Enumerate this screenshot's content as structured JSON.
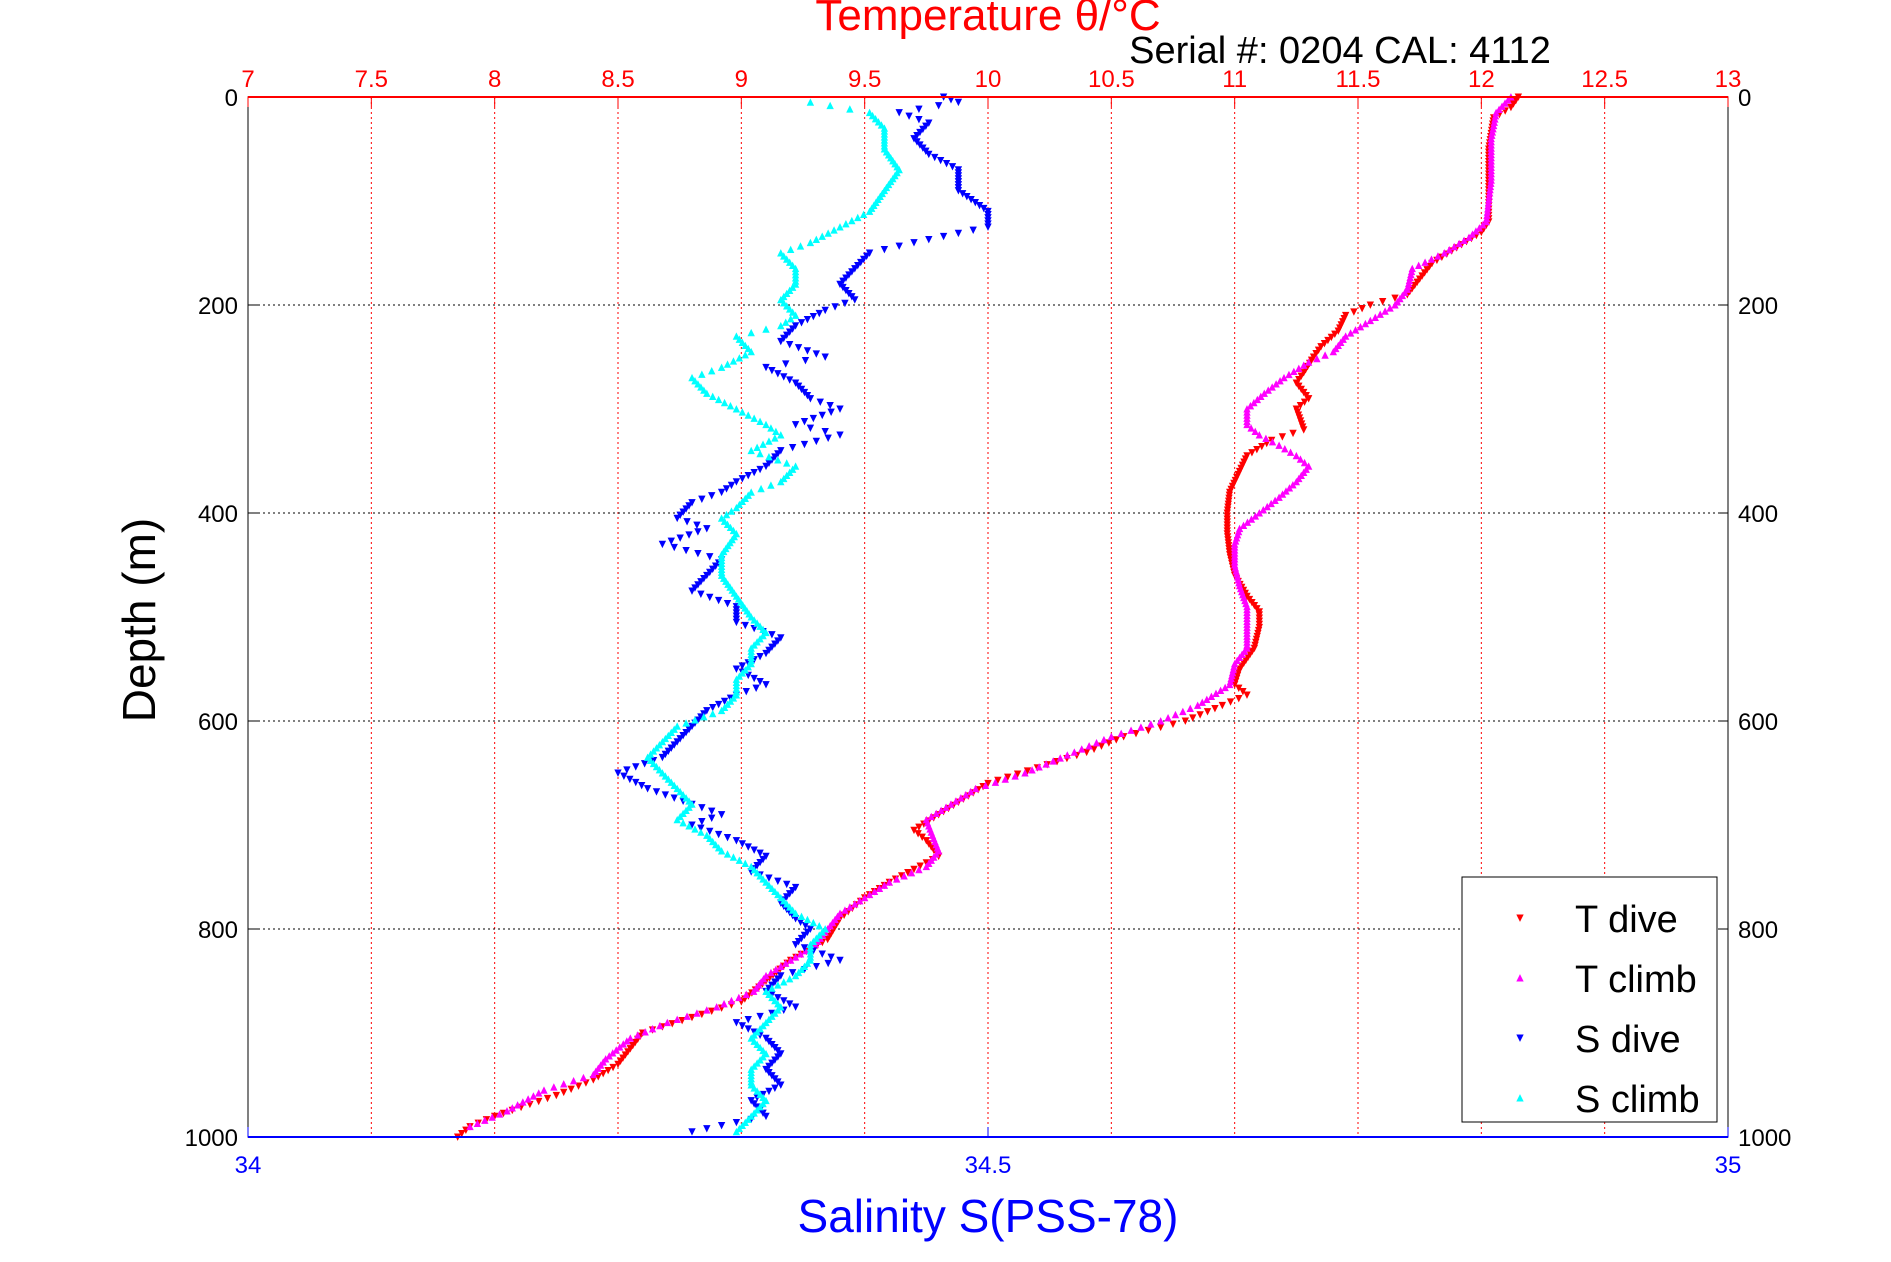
{
  "chart_data": {
    "type": "scatter",
    "title": "Temperature θ/°C",
    "subtitle": "Serial #: 0204  CAL: 4112",
    "ylabel": "Depth (m)",
    "xlabel_bottom": "Salinity S(PSS-78)",
    "y_range": [
      0,
      1000
    ],
    "y_reversed": true,
    "y_ticks": [
      "0",
      "200",
      "400",
      "600",
      "800",
      "1000"
    ],
    "y_tick_values": [
      0,
      200,
      400,
      600,
      800,
      1000
    ],
    "x_top_range": [
      7,
      13
    ],
    "x_top_ticks": [
      "7",
      "7.5",
      "8",
      "8.5",
      "9",
      "9.5",
      "10",
      "10.5",
      "11",
      "11.5",
      "12",
      "12.5",
      "13"
    ],
    "x_top_tick_values": [
      7,
      7.5,
      8,
      8.5,
      9,
      9.5,
      10,
      10.5,
      11,
      11.5,
      12,
      12.5,
      13
    ],
    "x_bottom_range": [
      34,
      35
    ],
    "x_bottom_ticks": [
      "34",
      "34.5",
      "35"
    ],
    "x_bottom_tick_values": [
      34,
      34.5,
      35
    ],
    "grid": true,
    "legend_position": "bottom-right",
    "colors": {
      "title": "#ff0000",
      "top_axis": "#ff0000",
      "bottom_axis": "#0000ff",
      "grid_vertical": "#ff0000",
      "grid_horizontal": "#000000"
    },
    "series": [
      {
        "name": "T dive",
        "axis": "temperature",
        "color": "#ff0000",
        "marker": "triangle-down",
        "points": [
          [
            12.15,
            0
          ],
          [
            12.12,
            10
          ],
          [
            12.05,
            20
          ],
          [
            12.03,
            50
          ],
          [
            12.03,
            80
          ],
          [
            12.03,
            120
          ],
          [
            12.0,
            130
          ],
          [
            11.9,
            145
          ],
          [
            11.8,
            160
          ],
          [
            11.75,
            175
          ],
          [
            11.7,
            190
          ],
          [
            11.55,
            200
          ],
          [
            11.45,
            210
          ],
          [
            11.42,
            225
          ],
          [
            11.35,
            240
          ],
          [
            11.32,
            250
          ],
          [
            11.28,
            265
          ],
          [
            11.25,
            275
          ],
          [
            11.3,
            290
          ],
          [
            11.25,
            300
          ],
          [
            11.28,
            320
          ],
          [
            11.15,
            330
          ],
          [
            11.05,
            345
          ],
          [
            11.02,
            360
          ],
          [
            10.98,
            380
          ],
          [
            10.97,
            400
          ],
          [
            10.97,
            420
          ],
          [
            10.98,
            440
          ],
          [
            11.0,
            460
          ],
          [
            11.05,
            480
          ],
          [
            11.1,
            495
          ],
          [
            11.1,
            510
          ],
          [
            11.08,
            530
          ],
          [
            11.02,
            550
          ],
          [
            11.0,
            565
          ],
          [
            11.05,
            575
          ],
          [
            10.95,
            585
          ],
          [
            10.8,
            600
          ],
          [
            10.55,
            615
          ],
          [
            10.4,
            630
          ],
          [
            10.2,
            645
          ],
          [
            10.0,
            660
          ],
          [
            9.9,
            675
          ],
          [
            9.8,
            690
          ],
          [
            9.7,
            705
          ],
          [
            9.75,
            715
          ],
          [
            9.8,
            730
          ],
          [
            9.6,
            755
          ],
          [
            9.5,
            770
          ],
          [
            9.45,
            780
          ],
          [
            9.4,
            790
          ],
          [
            9.35,
            810
          ],
          [
            9.2,
            830
          ],
          [
            9.1,
            850
          ],
          [
            9.0,
            870
          ],
          [
            8.8,
            885
          ],
          [
            8.6,
            900
          ],
          [
            8.55,
            915
          ],
          [
            8.5,
            930
          ],
          [
            8.4,
            945
          ],
          [
            8.25,
            960
          ],
          [
            8.0,
            980
          ],
          [
            7.9,
            990
          ],
          [
            7.85,
            1000
          ]
        ]
      },
      {
        "name": "T climb",
        "axis": "temperature",
        "color": "#ff00ff",
        "marker": "triangle-up",
        "points": [
          [
            12.12,
            0
          ],
          [
            12.06,
            15
          ],
          [
            12.04,
            40
          ],
          [
            12.04,
            80
          ],
          [
            12.02,
            120
          ],
          [
            11.95,
            135
          ],
          [
            11.85,
            150
          ],
          [
            11.72,
            165
          ],
          [
            11.7,
            185
          ],
          [
            11.65,
            200
          ],
          [
            11.55,
            215
          ],
          [
            11.45,
            230
          ],
          [
            11.4,
            245
          ],
          [
            11.3,
            255
          ],
          [
            11.2,
            270
          ],
          [
            11.12,
            285
          ],
          [
            11.05,
            300
          ],
          [
            11.05,
            315
          ],
          [
            11.1,
            325
          ],
          [
            11.18,
            335
          ],
          [
            11.25,
            345
          ],
          [
            11.3,
            355
          ],
          [
            11.25,
            370
          ],
          [
            11.18,
            385
          ],
          [
            11.1,
            400
          ],
          [
            11.02,
            415
          ],
          [
            11.0,
            430
          ],
          [
            11.0,
            450
          ],
          [
            11.02,
            470
          ],
          [
            11.05,
            490
          ],
          [
            11.05,
            510
          ],
          [
            11.05,
            530
          ],
          [
            11.0,
            545
          ],
          [
            10.98,
            565
          ],
          [
            10.85,
            585
          ],
          [
            10.7,
            600
          ],
          [
            10.5,
            615
          ],
          [
            10.35,
            630
          ],
          [
            10.15,
            650
          ],
          [
            9.95,
            665
          ],
          [
            9.85,
            680
          ],
          [
            9.75,
            695
          ],
          [
            9.8,
            725
          ],
          [
            9.75,
            740
          ],
          [
            9.6,
            755
          ],
          [
            9.5,
            770
          ],
          [
            9.4,
            785
          ],
          [
            9.35,
            800
          ],
          [
            9.3,
            815
          ],
          [
            9.2,
            830
          ],
          [
            9.1,
            845
          ],
          [
            9.05,
            860
          ],
          [
            8.9,
            875
          ],
          [
            8.7,
            890
          ],
          [
            8.55,
            905
          ],
          [
            8.45,
            925
          ],
          [
            8.4,
            940
          ],
          [
            8.2,
            955
          ],
          [
            8.05,
            975
          ],
          [
            7.9,
            990
          ]
        ]
      },
      {
        "name": "S dive",
        "axis": "salinity",
        "color": "#0000ff",
        "marker": "triangle-down",
        "points": [
          [
            34.47,
            0
          ],
          [
            34.48,
            5
          ],
          [
            34.44,
            15
          ],
          [
            34.46,
            25
          ],
          [
            34.45,
            40
          ],
          [
            34.46,
            55
          ],
          [
            34.48,
            70
          ],
          [
            34.48,
            90
          ],
          [
            34.5,
            110
          ],
          [
            34.5,
            125
          ],
          [
            34.45,
            140
          ],
          [
            34.42,
            150
          ],
          [
            34.41,
            165
          ],
          [
            34.4,
            180
          ],
          [
            34.41,
            195
          ],
          [
            34.39,
            205
          ],
          [
            34.37,
            220
          ],
          [
            34.36,
            235
          ],
          [
            34.39,
            250
          ],
          [
            34.35,
            260
          ],
          [
            34.37,
            275
          ],
          [
            34.38,
            290
          ],
          [
            34.4,
            300
          ],
          [
            34.37,
            315
          ],
          [
            34.4,
            325
          ],
          [
            34.36,
            340
          ],
          [
            34.35,
            355
          ],
          [
            34.33,
            370
          ],
          [
            34.32,
            380
          ],
          [
            34.3,
            390
          ],
          [
            34.29,
            405
          ],
          [
            34.31,
            415
          ],
          [
            34.28,
            430
          ],
          [
            34.32,
            445
          ],
          [
            34.31,
            460
          ],
          [
            34.3,
            475
          ],
          [
            34.33,
            490
          ],
          [
            34.33,
            505
          ],
          [
            34.36,
            520
          ],
          [
            34.35,
            535
          ],
          [
            34.33,
            550
          ],
          [
            34.35,
            565
          ],
          [
            34.33,
            575
          ],
          [
            34.31,
            590
          ],
          [
            34.3,
            605
          ],
          [
            34.29,
            620
          ],
          [
            34.28,
            635
          ],
          [
            34.25,
            650
          ],
          [
            34.27,
            665
          ],
          [
            34.3,
            680
          ],
          [
            34.32,
            690
          ],
          [
            34.3,
            700
          ],
          [
            34.33,
            715
          ],
          [
            34.35,
            730
          ],
          [
            34.34,
            745
          ],
          [
            34.37,
            760
          ],
          [
            34.36,
            775
          ],
          [
            34.37,
            790
          ],
          [
            34.38,
            800
          ],
          [
            34.37,
            815
          ],
          [
            34.4,
            830
          ],
          [
            34.36,
            845
          ],
          [
            34.35,
            860
          ],
          [
            34.37,
            875
          ],
          [
            34.33,
            890
          ],
          [
            34.35,
            905
          ],
          [
            34.36,
            920
          ],
          [
            34.35,
            935
          ],
          [
            34.36,
            950
          ],
          [
            34.34,
            965
          ],
          [
            34.35,
            980
          ],
          [
            34.3,
            995
          ]
        ]
      },
      {
        "name": "S climb",
        "axis": "salinity",
        "color": "#00ffff",
        "marker": "triangle-up",
        "points": [
          [
            34.38,
            5
          ],
          [
            34.42,
            15
          ],
          [
            34.43,
            30
          ],
          [
            34.43,
            50
          ],
          [
            34.44,
            70
          ],
          [
            34.43,
            90
          ],
          [
            34.42,
            110
          ],
          [
            34.4,
            125
          ],
          [
            34.38,
            140
          ],
          [
            34.36,
            150
          ],
          [
            34.37,
            165
          ],
          [
            34.37,
            180
          ],
          [
            34.36,
            195
          ],
          [
            34.37,
            210
          ],
          [
            34.36,
            220
          ],
          [
            34.33,
            230
          ],
          [
            34.34,
            245
          ],
          [
            34.32,
            260
          ],
          [
            34.3,
            270
          ],
          [
            34.31,
            285
          ],
          [
            34.33,
            300
          ],
          [
            34.35,
            315
          ],
          [
            34.36,
            325
          ],
          [
            34.34,
            340
          ],
          [
            34.37,
            355
          ],
          [
            34.36,
            370
          ],
          [
            34.34,
            380
          ],
          [
            34.33,
            395
          ],
          [
            34.32,
            405
          ],
          [
            34.33,
            420
          ],
          [
            34.32,
            440
          ],
          [
            34.32,
            460
          ],
          [
            34.33,
            480
          ],
          [
            34.34,
            500
          ],
          [
            34.35,
            515
          ],
          [
            34.34,
            530
          ],
          [
            34.34,
            545
          ],
          [
            34.33,
            560
          ],
          [
            34.33,
            575
          ],
          [
            34.32,
            590
          ],
          [
            34.29,
            605
          ],
          [
            34.28,
            620
          ],
          [
            34.27,
            635
          ],
          [
            34.28,
            650
          ],
          [
            34.29,
            665
          ],
          [
            34.3,
            680
          ],
          [
            34.29,
            695
          ],
          [
            34.31,
            710
          ],
          [
            34.32,
            725
          ],
          [
            34.34,
            740
          ],
          [
            34.35,
            755
          ],
          [
            34.36,
            770
          ],
          [
            34.37,
            785
          ],
          [
            34.39,
            800
          ],
          [
            34.38,
            815
          ],
          [
            34.38,
            830
          ],
          [
            34.37,
            845
          ],
          [
            34.35,
            860
          ],
          [
            34.36,
            875
          ],
          [
            34.35,
            890
          ],
          [
            34.34,
            905
          ],
          [
            34.35,
            920
          ],
          [
            34.34,
            935
          ],
          [
            34.34,
            950
          ],
          [
            34.35,
            965
          ],
          [
            34.34,
            980
          ],
          [
            34.33,
            995
          ]
        ]
      }
    ]
  }
}
